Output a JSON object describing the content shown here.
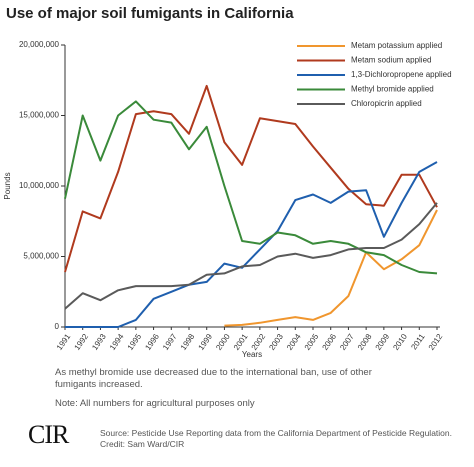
{
  "chart_data": {
    "type": "line",
    "title": "Use of major soil fumigants in California",
    "xlabel": "Years",
    "ylabel": "Pounds",
    "categories": [
      "1991",
      "1992",
      "1993",
      "1994",
      "1995",
      "1996",
      "1997",
      "1998",
      "1999",
      "2000",
      "2001",
      "2002",
      "2003",
      "2004",
      "2005",
      "2006",
      "2007",
      "2008",
      "2009",
      "2010",
      "2011",
      "2012"
    ],
    "ylim": [
      0,
      20000000
    ],
    "yticks": [
      0,
      {
        "value": 5000000,
        "label": "5,000,000"
      },
      {
        "value": 10000000,
        "label": "10,000,000"
      },
      {
        "value": 15000000,
        "label": "15,000,000"
      },
      {
        "value": 20000000,
        "label": "20,000,000"
      }
    ],
    "legend": "upper right",
    "series": [
      {
        "name": "Metam potassium applied",
        "color": "#f0962e",
        "values": [
          null,
          null,
          null,
          null,
          null,
          null,
          null,
          null,
          null,
          100000,
          150000,
          300000,
          500000,
          700000,
          500000,
          1000000,
          2200000,
          5300000,
          4100000,
          4800000,
          5800000,
          8300000
        ]
      },
      {
        "name": "Metam sodium applied",
        "color": "#b03a1e",
        "values": [
          3900000,
          8200000,
          7700000,
          11000000,
          15100000,
          15300000,
          15100000,
          13700000,
          17100000,
          13100000,
          11500000,
          14800000,
          14600000,
          14400000,
          12800000,
          11300000,
          9800000,
          8700000,
          8600000,
          10800000,
          10800000,
          8500000
        ]
      },
      {
        "name": "1,3-Dichloropropene applied",
        "color": "#1f5fae",
        "values": [
          0,
          0,
          0,
          0,
          500000,
          2000000,
          2500000,
          3000000,
          3200000,
          4500000,
          4200000,
          5500000,
          6800000,
          9000000,
          9400000,
          8800000,
          9600000,
          9700000,
          6400000,
          8800000,
          11000000,
          11700000
        ]
      },
      {
        "name": "Methyl bromide applied",
        "color": "#3a8a3a",
        "values": [
          9100000,
          15000000,
          11800000,
          15000000,
          16000000,
          14700000,
          14500000,
          12600000,
          14200000,
          10000000,
          6100000,
          5900000,
          6700000,
          6500000,
          5900000,
          6100000,
          5900000,
          5300000,
          5100000,
          4400000,
          3900000,
          3800000
        ]
      },
      {
        "name": "Chloropicrin applied",
        "color": "#5a5a5a",
        "values": [
          1300000,
          2400000,
          1900000,
          2600000,
          2900000,
          2900000,
          2900000,
          3000000,
          3700000,
          3800000,
          4300000,
          4400000,
          5000000,
          5200000,
          4900000,
          5100000,
          5500000,
          5600000,
          5600000,
          6200000,
          7300000,
          8800000
        ]
      }
    ]
  },
  "notes": [
    "As methyl bromide use decreased due to the international ban, use of other",
    "fumigants increased.",
    "Note: All numbers for agricultural purposes only"
  ],
  "logo": "CIR",
  "source": "Source: Pesticide Use Reporting data from the California Department of Pesticide Regulation.",
  "credit": "Credit: Sam Ward/CIR"
}
